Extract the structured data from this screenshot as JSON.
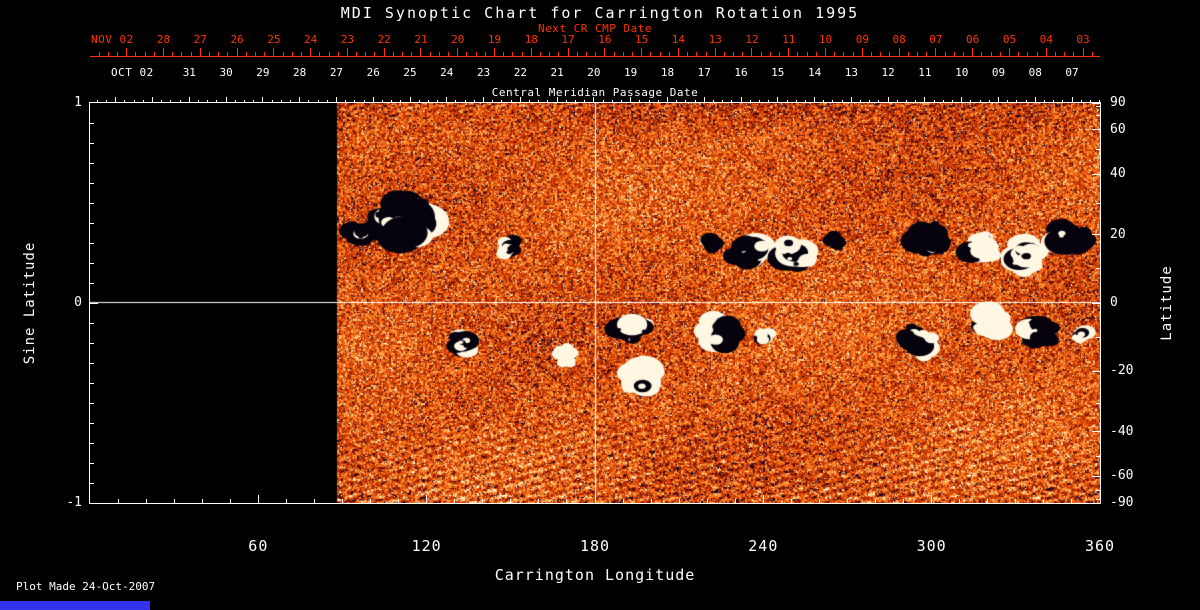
{
  "title": "MDI Synoptic Chart for Carrington Rotation 1995",
  "footer": {
    "plot_made": "Plot Made 24-Oct-2007"
  },
  "colors": {
    "background": "#000000",
    "foreground": "#ffffff",
    "next_cr_axis": "#ff3300",
    "colorbar_fragment": "#3333ee"
  },
  "axes": {
    "next_cr": {
      "label": "Next CR CMP Date",
      "month_label": "NOV 02",
      "day_ticks": [
        "28",
        "27",
        "26",
        "25",
        "24",
        "23",
        "22",
        "21",
        "20",
        "19",
        "18",
        "17",
        "16",
        "15",
        "14",
        "13",
        "12",
        "11",
        "10",
        "09",
        "08",
        "07",
        "06",
        "05",
        "04",
        "03"
      ]
    },
    "cmp": {
      "label": "Central Meridian Passage Date",
      "month_label": "OCT 02",
      "day_ticks": [
        "31",
        "30",
        "29",
        "28",
        "27",
        "26",
        "25",
        "24",
        "23",
        "22",
        "21",
        "20",
        "19",
        "18",
        "17",
        "16",
        "15",
        "14",
        "13",
        "12",
        "11",
        "10",
        "09",
        "08",
        "07"
      ]
    },
    "x": {
      "label": "Carrington Longitude",
      "ticks": [
        "60",
        "120",
        "180",
        "240",
        "300",
        "360"
      ]
    },
    "y_left": {
      "label": "Sine Latitude",
      "ticks": [
        "1",
        "0",
        "-1"
      ]
    },
    "y_right": {
      "label": "Latitude",
      "ticks": [
        "90",
        "60",
        "40",
        "20",
        "0",
        "-20",
        "-40",
        "-60",
        "-90"
      ]
    }
  },
  "chart_data": {
    "type": "heatmap",
    "title": "MDI Synoptic Chart for Carrington Rotation 1995",
    "xlabel": "Carrington Longitude",
    "ylabel_left": "Sine Latitude",
    "ylabel_right": "Latitude",
    "xlim": [
      0,
      360
    ],
    "ylim_sine_latitude": [
      -1,
      1
    ],
    "x_major_ticks": [
      60,
      120,
      180,
      240,
      300,
      360
    ],
    "y_left_major_ticks": [
      1,
      0,
      -1
    ],
    "y_right_major_ticks_deg": [
      90,
      60,
      40,
      20,
      0,
      -20,
      -40,
      -60,
      -90
    ],
    "data_longitude_range": [
      88,
      360
    ],
    "no_data_longitude_range": [
      0,
      88
    ],
    "reference_lines": {
      "longitude": 180,
      "sine_latitude": 0
    },
    "day_tick_step_deg": 13.11,
    "next_cr_first_tick_longitude_deg": 26.2,
    "cmp_first_tick_longitude_deg": 35.4,
    "field_description": "Line-of-sight photospheric magnetic field: orange/red speckle = quiet Sun, white patches = strong positive flux, dark navy patches = strong negative flux; no data for longitudes below ~88",
    "palette_hex": [
      "#140428",
      "#7c1600",
      "#c03000",
      "#ea5a0c",
      "#ff8426",
      "#ffb658",
      "#ffdf9c",
      "#fff8e0"
    ],
    "negative_polarity_color": "#06020e",
    "positive_polarity_color": "#fff7e2",
    "active_regions": [
      {
        "longitude": 112,
        "sine_latitude": 0.42,
        "extent_lon_deg": 26,
        "extent_sinlat": 0.26,
        "polarity": "neg-pos",
        "size": "large"
      },
      {
        "longitude": 96,
        "sine_latitude": 0.34,
        "extent_lon_deg": 8,
        "extent_sinlat": 0.1,
        "polarity": "negative",
        "size": "small"
      },
      {
        "longitude": 149,
        "sine_latitude": 0.27,
        "extent_lon_deg": 8,
        "extent_sinlat": 0.1,
        "polarity": "pos-neg",
        "size": "small"
      },
      {
        "longitude": 222,
        "sine_latitude": 0.29,
        "extent_lon_deg": 6,
        "extent_sinlat": 0.08,
        "polarity": "negative",
        "size": "small"
      },
      {
        "longitude": 235,
        "sine_latitude": 0.26,
        "extent_lon_deg": 13,
        "extent_sinlat": 0.16,
        "polarity": "neg-pos",
        "size": "medium"
      },
      {
        "longitude": 252,
        "sine_latitude": 0.24,
        "extent_lon_deg": 12,
        "extent_sinlat": 0.16,
        "polarity": "neg-pos",
        "size": "medium"
      },
      {
        "longitude": 266,
        "sine_latitude": 0.31,
        "extent_lon_deg": 7,
        "extent_sinlat": 0.08,
        "polarity": "negative",
        "size": "small"
      },
      {
        "longitude": 299,
        "sine_latitude": 0.33,
        "extent_lon_deg": 13,
        "extent_sinlat": 0.18,
        "polarity": "negative",
        "size": "medium"
      },
      {
        "longitude": 318,
        "sine_latitude": 0.28,
        "extent_lon_deg": 12,
        "extent_sinlat": 0.16,
        "polarity": "positive",
        "size": "medium"
      },
      {
        "longitude": 333,
        "sine_latitude": 0.23,
        "extent_lon_deg": 11,
        "extent_sinlat": 0.2,
        "polarity": "positive",
        "size": "large"
      },
      {
        "longitude": 349,
        "sine_latitude": 0.32,
        "extent_lon_deg": 15,
        "extent_sinlat": 0.16,
        "polarity": "negative",
        "size": "medium"
      },
      {
        "longitude": 133,
        "sine_latitude": -0.2,
        "extent_lon_deg": 9,
        "extent_sinlat": 0.12,
        "polarity": "neg-pos",
        "size": "small"
      },
      {
        "longitude": 170,
        "sine_latitude": -0.26,
        "extent_lon_deg": 9,
        "extent_sinlat": 0.1,
        "polarity": "positive",
        "size": "small"
      },
      {
        "longitude": 193,
        "sine_latitude": -0.13,
        "extent_lon_deg": 14,
        "extent_sinlat": 0.14,
        "polarity": "negative",
        "size": "medium"
      },
      {
        "longitude": 197,
        "sine_latitude": -0.37,
        "extent_lon_deg": 11,
        "extent_sinlat": 0.2,
        "polarity": "positive",
        "size": "large"
      },
      {
        "longitude": 224,
        "sine_latitude": -0.15,
        "extent_lon_deg": 14,
        "extent_sinlat": 0.16,
        "polarity": "pos-neg",
        "size": "medium"
      },
      {
        "longitude": 240,
        "sine_latitude": -0.16,
        "extent_lon_deg": 6,
        "extent_sinlat": 0.08,
        "polarity": "positive",
        "size": "small"
      },
      {
        "longitude": 295,
        "sine_latitude": -0.19,
        "extent_lon_deg": 16,
        "extent_sinlat": 0.16,
        "polarity": "neg-pos",
        "size": "medium"
      },
      {
        "longitude": 321,
        "sine_latitude": -0.1,
        "extent_lon_deg": 13,
        "extent_sinlat": 0.14,
        "polarity": "positive",
        "size": "medium"
      },
      {
        "longitude": 339,
        "sine_latitude": -0.14,
        "extent_lon_deg": 11,
        "extent_sinlat": 0.14,
        "polarity": "negative",
        "size": "medium"
      },
      {
        "longitude": 353,
        "sine_latitude": -0.16,
        "extent_lon_deg": 7,
        "extent_sinlat": 0.08,
        "polarity": "positive",
        "size": "small"
      }
    ]
  }
}
